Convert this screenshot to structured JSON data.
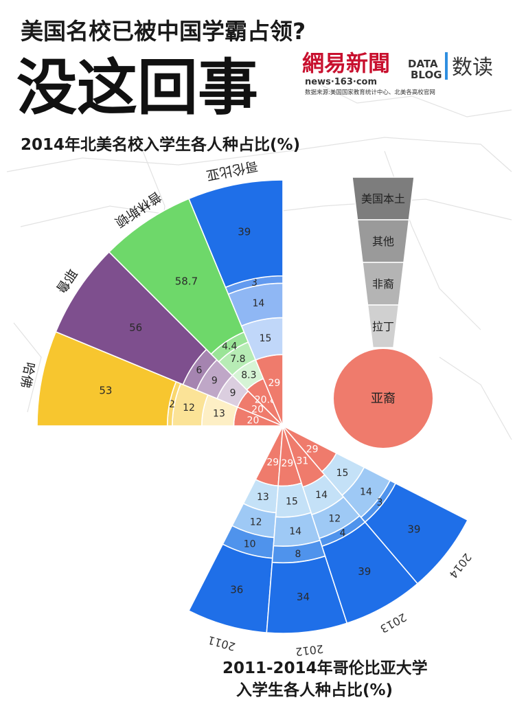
{
  "header": {
    "headline": "美国名校已被中国学霸占领?",
    "big_title": "没这回事",
    "brand": "網易新聞",
    "brand_url": "news·163·com",
    "source": "数据来源:美国国家教育统计中心、北美各高校官网",
    "datablog_line1": "DATA",
    "datablog_line2": "BLOG",
    "datablog_cn": "数读"
  },
  "colors": {
    "asian": "#ef7b6c",
    "hispanic": "#c4e1f7",
    "black": "#b7d7f3",
    "other": "#a8cdf0",
    "columbia": "#1f6fe8",
    "columbia_mid": "#4f93ec",
    "columbia_light": "#9ec9f5",
    "princeton": "#6ed86a",
    "yale": "#7e4f8e",
    "harvard": "#f7c62f"
  },
  "legend": {
    "items": [
      "美国本土",
      "其他",
      "非裔",
      "拉丁",
      "亚裔"
    ],
    "colors": [
      "#7d7d7d",
      "#9a9a9a",
      "#b4b4b4",
      "#d0d0d0",
      "#ef7b6c"
    ]
  },
  "chart_data": [
    {
      "type": "radial-stacked-bar",
      "title": "2014年北美名校入学生各人种占比(%)",
      "stack_order": [
        "亚裔",
        "拉丁",
        "非裔",
        "其他",
        "美国本土"
      ],
      "categories": [
        "哈佛",
        "耶鲁",
        "普林斯顿",
        "哥伦比亚"
      ],
      "series": [
        {
          "name": "亚裔",
          "values": [
            20,
            20,
            20.8,
            29
          ]
        },
        {
          "name": "拉丁",
          "values": [
            13,
            9,
            8.3,
            15
          ]
        },
        {
          "name": "非裔",
          "values": [
            12,
            9,
            7.8,
            14
          ]
        },
        {
          "name": "其他",
          "values": [
            2,
            6,
            4.4,
            3
          ]
        },
        {
          "name": "美国本土",
          "values": [
            53,
            56,
            58.7,
            39
          ]
        }
      ]
    },
    {
      "type": "radial-stacked-bar",
      "title": "2011-2014年哥伦比亚大学入学生各人种占比(%)",
      "stack_order": [
        "亚裔",
        "拉丁",
        "非裔",
        "其他",
        "美国本土"
      ],
      "categories": [
        "2011",
        "2012",
        "2013",
        "2014"
      ],
      "series": [
        {
          "name": "亚裔",
          "values": [
            29,
            29,
            31,
            29
          ]
        },
        {
          "name": "拉丁",
          "values": [
            13,
            15,
            14,
            15
          ]
        },
        {
          "name": "非裔",
          "values": [
            12,
            14,
            12,
            14
          ]
        },
        {
          "name": "其他",
          "values": [
            10,
            8,
            4,
            3
          ]
        },
        {
          "name": "美国本土",
          "values": [
            36,
            34,
            39,
            39
          ]
        }
      ]
    }
  ]
}
